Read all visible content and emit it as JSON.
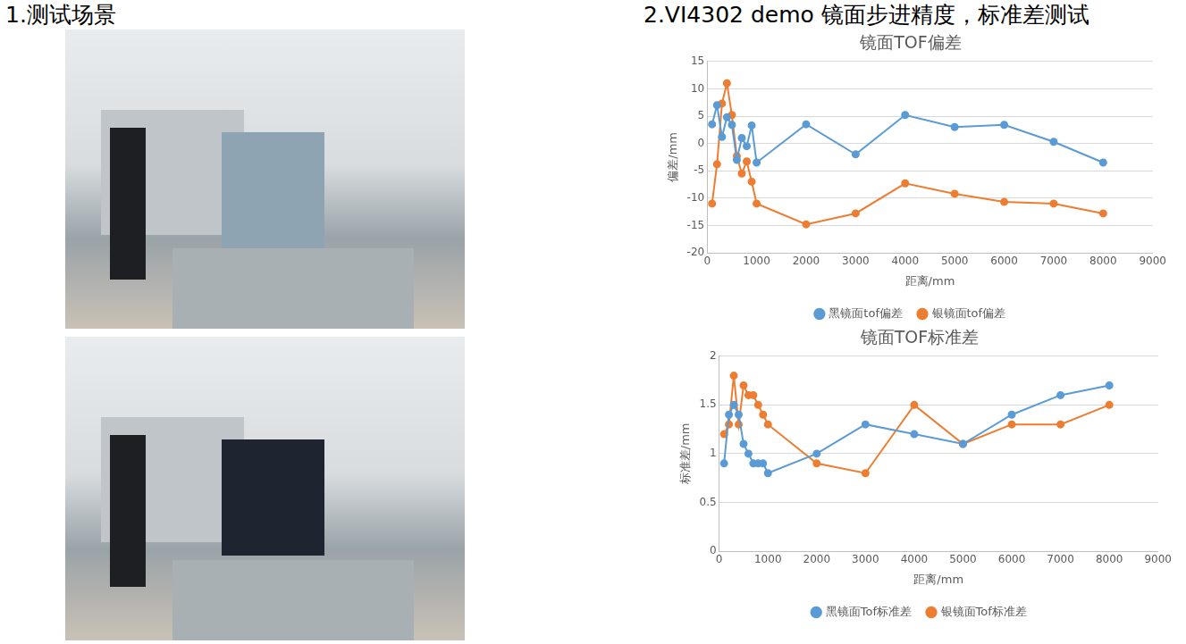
{
  "headings": [
    "1.测试场景",
    "2.VI4302 demo 镜面步进精度，标准差测试"
  ],
  "chart_data": [
    {
      "type": "line",
      "title": "镜面TOF偏差",
      "x_label": "距离/mm",
      "y_label": "偏差/mm",
      "x": [
        100,
        200,
        300,
        400,
        500,
        600,
        700,
        800,
        900,
        1000,
        2000,
        3000,
        4000,
        5000,
        6000,
        7000,
        8000
      ],
      "series": [
        {
          "name": "黑镜面tof偏差",
          "color": "#5b9bd5",
          "marker": "circle",
          "values": [
            3.5,
            7,
            1.2,
            4.8,
            3.4,
            -3,
            1,
            -0.5,
            3.3,
            -3.5,
            3.5,
            -2,
            5.2,
            3,
            3.4,
            0.3,
            -3.5
          ]
        },
        {
          "name": "银镜面tof偏差",
          "color": "#ed7d31",
          "marker": "circle",
          "values": [
            -11,
            -3.8,
            7.3,
            11,
            5.2,
            -2.3,
            -5.5,
            -3.3,
            -7,
            -11,
            -14.8,
            -12.8,
            -7.3,
            -9.2,
            -10.7,
            -11,
            -12.8
          ]
        }
      ],
      "xlim": [
        0,
        9000
      ],
      "xticks": [
        0,
        1000,
        2000,
        3000,
        4000,
        5000,
        6000,
        7000,
        8000,
        9000
      ],
      "ylim": [
        -20,
        15
      ],
      "yticks": [
        -20,
        -15,
        -10,
        -5,
        0,
        5,
        10,
        15
      ],
      "grid": true,
      "legend": "bottom"
    },
    {
      "type": "line",
      "title": "镜面TOF标准差",
      "x_label": "距离/mm",
      "y_label": "标准差/mm",
      "x": [
        100,
        200,
        300,
        400,
        500,
        600,
        700,
        800,
        900,
        1000,
        2000,
        3000,
        4000,
        5000,
        6000,
        7000,
        8000
      ],
      "series": [
        {
          "name": "黑镜面Tof标准差",
          "color": "#5b9bd5",
          "marker": "circle",
          "values": [
            0.9,
            1.4,
            1.5,
            1.4,
            1.1,
            1.0,
            0.9,
            0.9,
            0.9,
            0.8,
            1.0,
            1.3,
            1.2,
            1.1,
            1.4,
            1.6,
            1.7
          ]
        },
        {
          "name": "银镜面Tof标准差",
          "color": "#ed7d31",
          "marker": "circle",
          "values": [
            1.2,
            1.3,
            1.8,
            1.3,
            1.7,
            1.6,
            1.6,
            1.5,
            1.4,
            1.3,
            0.9,
            0.8,
            1.5,
            1.1,
            1.3,
            1.3,
            1.5
          ]
        }
      ],
      "xlim": [
        0,
        9000
      ],
      "xticks": [
        0,
        1000,
        2000,
        3000,
        4000,
        5000,
        6000,
        7000,
        8000,
        9000
      ],
      "ylim": [
        0,
        2
      ],
      "yticks": [
        0,
        0.5,
        1,
        1.5,
        2
      ],
      "grid": true,
      "legend": "bottom"
    }
  ]
}
